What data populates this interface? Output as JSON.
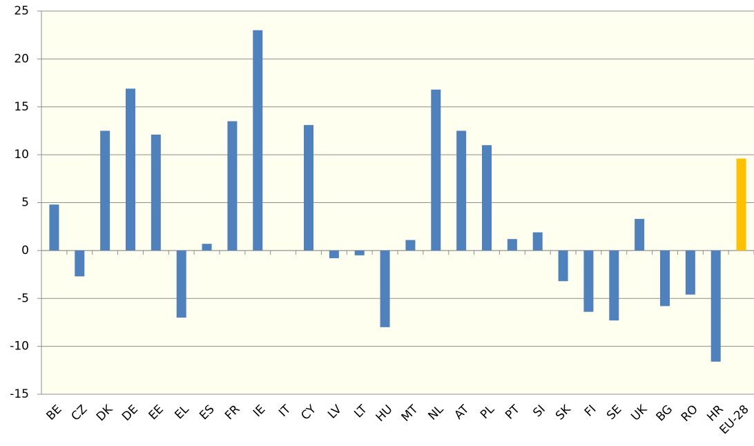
{
  "chart_data": {
    "type": "bar",
    "categories": [
      "BE",
      "CZ",
      "DK",
      "DE",
      "EE",
      "EL",
      "ES",
      "FR",
      "IE",
      "IT",
      "CY",
      "LV",
      "LT",
      "HU",
      "MT",
      "NL",
      "AT",
      "PL",
      "PT",
      "SI",
      "SK",
      "FI",
      "SE",
      "UK",
      "BG",
      "RO",
      "HR",
      "EU-28"
    ],
    "values": [
      4.8,
      -2.7,
      12.5,
      16.9,
      12.1,
      -7.0,
      0.7,
      13.5,
      23.0,
      0,
      13.1,
      -0.8,
      -0.5,
      -8.0,
      1.1,
      16.8,
      12.5,
      11.0,
      1.2,
      1.9,
      -3.2,
      -6.4,
      -7.3,
      3.3,
      -5.8,
      -4.6,
      -11.6,
      9.6
    ],
    "colors": [
      "#4f81bd",
      "#4f81bd",
      "#4f81bd",
      "#4f81bd",
      "#4f81bd",
      "#4f81bd",
      "#4f81bd",
      "#4f81bd",
      "#4f81bd",
      "#4f81bd",
      "#4f81bd",
      "#4f81bd",
      "#4f81bd",
      "#4f81bd",
      "#4f81bd",
      "#4f81bd",
      "#4f81bd",
      "#4f81bd",
      "#4f81bd",
      "#4f81bd",
      "#4f81bd",
      "#4f81bd",
      "#4f81bd",
      "#4f81bd",
      "#4f81bd",
      "#4f81bd",
      "#4f81bd",
      "#ffc000"
    ],
    "ylim": [
      -15,
      25
    ],
    "yticks": [
      -15,
      -10,
      -5,
      0,
      5,
      10,
      15,
      20,
      25
    ],
    "grid": true
  }
}
